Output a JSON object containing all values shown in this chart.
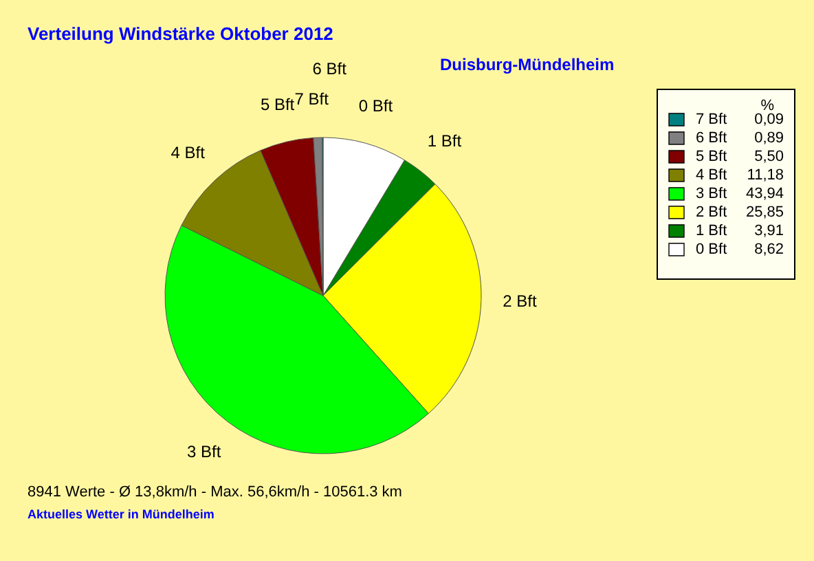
{
  "chart_data": {
    "type": "pie",
    "title": "Verteilung Windstärke  Oktober 2012",
    "subtitle": "Duisburg-Mündelheim",
    "legend_title": "%",
    "legend": "top right",
    "categories": [
      "0 Bft",
      "1 Bft",
      "2 Bft",
      "3 Bft",
      "4 Bft",
      "5 Bft",
      "6 Bft",
      "7 Bft"
    ],
    "values": [
      8.62,
      3.91,
      25.85,
      43.94,
      11.18,
      5.5,
      0.89,
      0.09
    ],
    "value_labels": [
      "8,62",
      "3,91",
      "25,85",
      "43,94",
      "11,18",
      "5,50",
      "0,89",
      "0,09"
    ],
    "colors": [
      "#ffffff",
      "#008000",
      "#ffff00",
      "#00ff00",
      "#808000",
      "#800000",
      "#808080",
      "#008080"
    ],
    "annotations": [
      "8941 Werte   -   Ø 13,8km/h  -  Max. 56,6km/h   -   10561.3 km",
      "Aktuelles Wetter in Mündelheim"
    ]
  }
}
